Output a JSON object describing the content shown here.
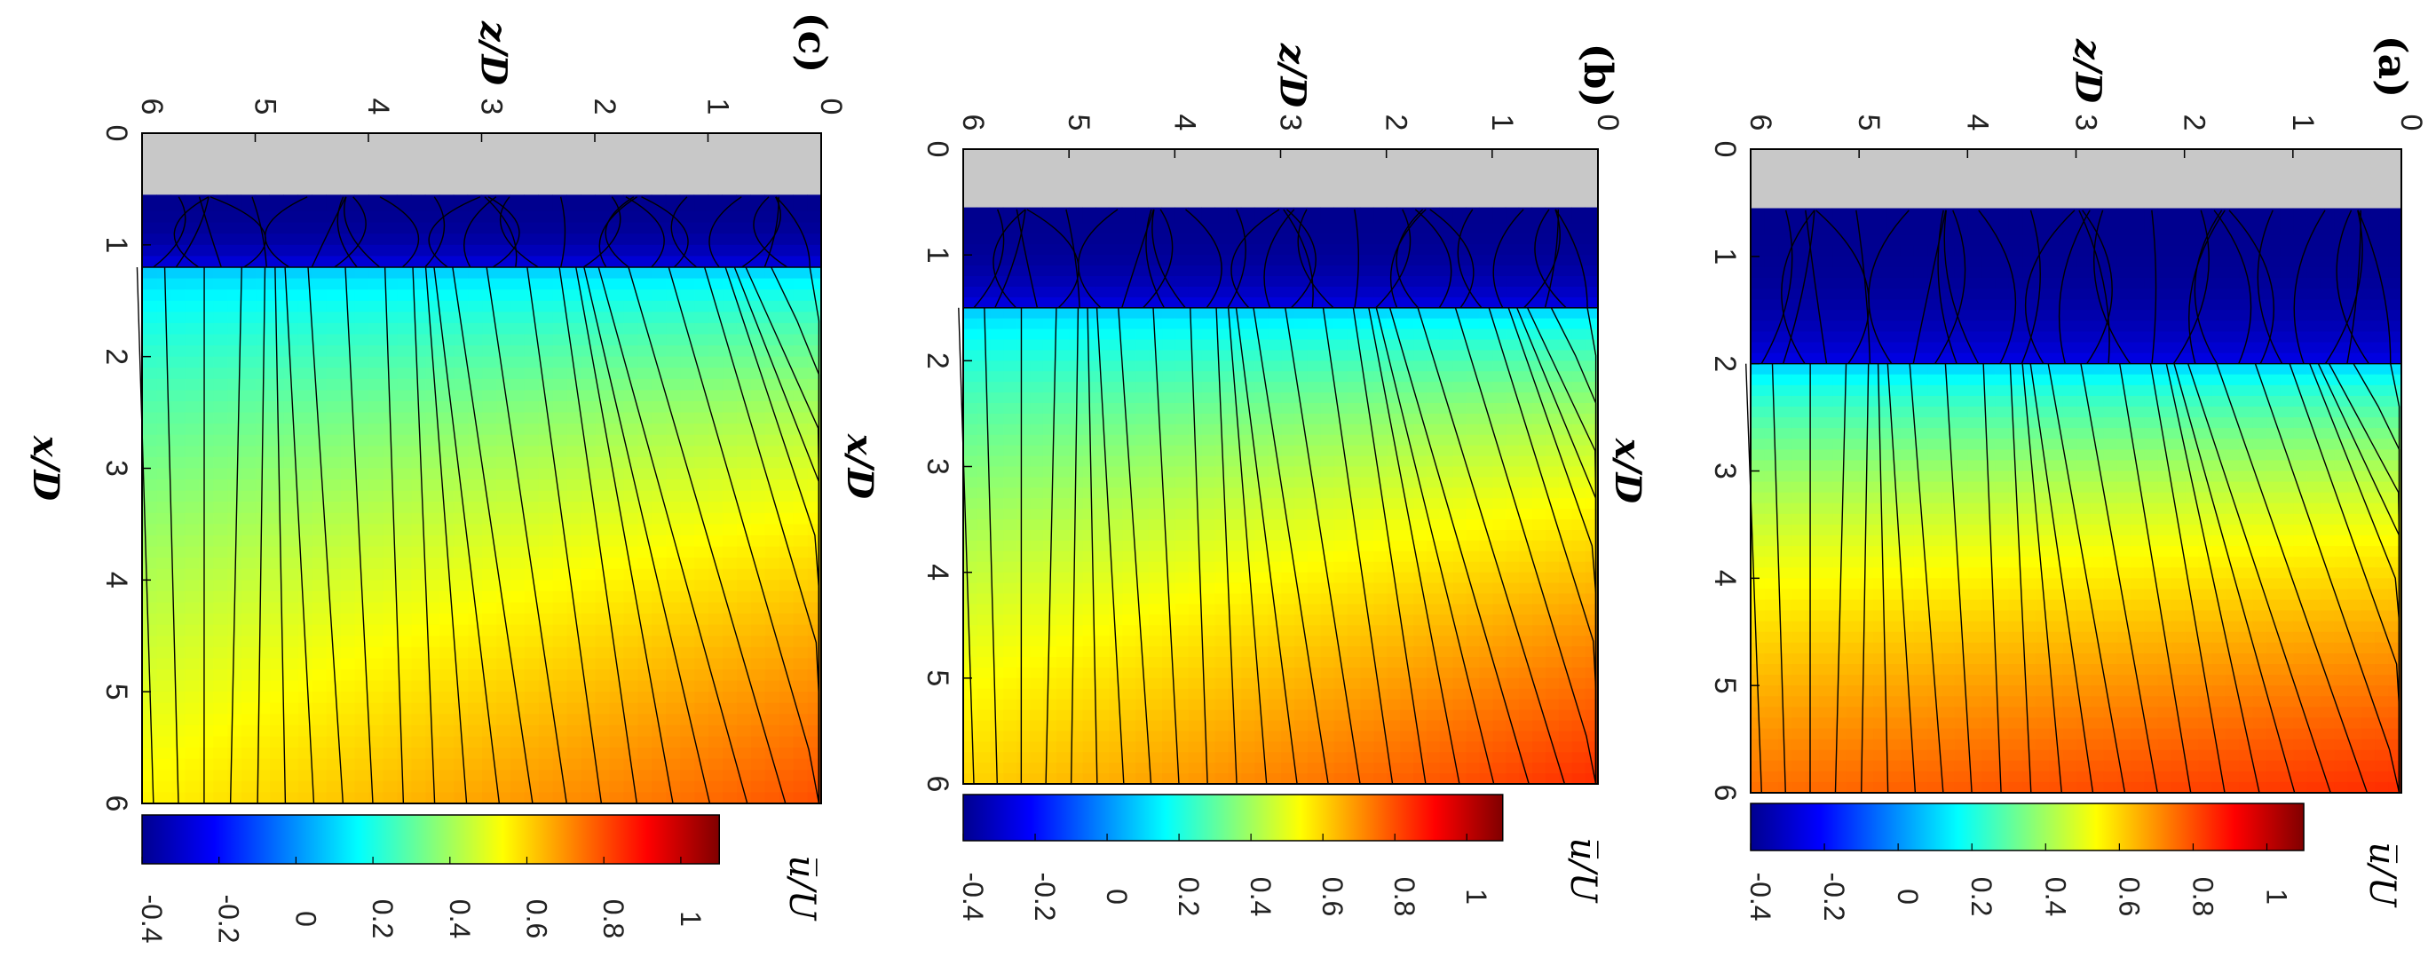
{
  "chart_data": [
    {
      "panel": "(a)",
      "type": "heatmap",
      "title": "(a)",
      "xlabel": "x/D",
      "ylabel": "z/D",
      "x_ticks": [
        "0",
        "1",
        "2",
        "3",
        "4",
        "5",
        "6"
      ],
      "z_ticks": [
        "0",
        "1",
        "2",
        "3",
        "4",
        "5",
        "6"
      ],
      "xlim": [
        0,
        6
      ],
      "zlim": [
        0,
        6
      ],
      "blocked_region_x": [
        0,
        0.55
      ],
      "recirculation_end_x": 2.0,
      "colorbar_label": "u̅/U",
      "colorbar_ticks": [
        "-0.4",
        "-0.2",
        "0",
        "0.2",
        "0.4",
        "0.6",
        "0.8",
        "1"
      ],
      "colorbar_range": [
        -0.4,
        1.1
      ],
      "field": {
        "min": -0.4,
        "max_far": 0.75,
        "max_near_wall": 0.85
      }
    },
    {
      "panel": "(b)",
      "type": "heatmap",
      "title": "(b)",
      "xlabel": "x/D",
      "ylabel": "z/D",
      "x_ticks": [
        "0",
        "1",
        "2",
        "3",
        "4",
        "5",
        "6"
      ],
      "z_ticks": [
        "0",
        "1",
        "2",
        "3",
        "4",
        "5",
        "6"
      ],
      "xlim": [
        0,
        6
      ],
      "zlim": [
        0,
        6
      ],
      "blocked_region_x": [
        0,
        0.55
      ],
      "recirculation_end_x": 1.5,
      "colorbar_label": "u̅/U",
      "colorbar_ticks": [
        "-0.4",
        "-0.2",
        "0",
        "0.2",
        "0.4",
        "0.6",
        "0.8",
        "1"
      ],
      "colorbar_range": [
        -0.4,
        1.1
      ],
      "field": {
        "min": -0.4,
        "max_far": 0.6,
        "max_near_wall": 0.85
      }
    },
    {
      "panel": "(c)",
      "type": "heatmap",
      "title": "(c)",
      "xlabel": "x/D",
      "ylabel": "z/D",
      "x_ticks": [
        "0",
        "1",
        "2",
        "3",
        "4",
        "5",
        "6"
      ],
      "z_ticks": [
        "0",
        "1",
        "2",
        "3",
        "4",
        "5",
        "6"
      ],
      "xlim": [
        0,
        6
      ],
      "zlim": [
        0,
        6
      ],
      "blocked_region_x": [
        0,
        0.55
      ],
      "recirculation_end_x": 1.2,
      "colorbar_label": "u̅/U",
      "colorbar_ticks": [
        "-0.4",
        "-0.2",
        "0",
        "0.2",
        "0.4",
        "0.6",
        "0.8",
        "1"
      ],
      "colorbar_range": [
        -0.4,
        1.1
      ],
      "field": {
        "min": -0.4,
        "max_far": 0.55,
        "max_near_wall": 0.8
      }
    }
  ],
  "colors": {
    "blocked": "#c8c8c8",
    "jet": [
      "#00008f",
      "#0000ff",
      "#00ffff",
      "#ffff00",
      "#ff0000",
      "#800000"
    ]
  }
}
